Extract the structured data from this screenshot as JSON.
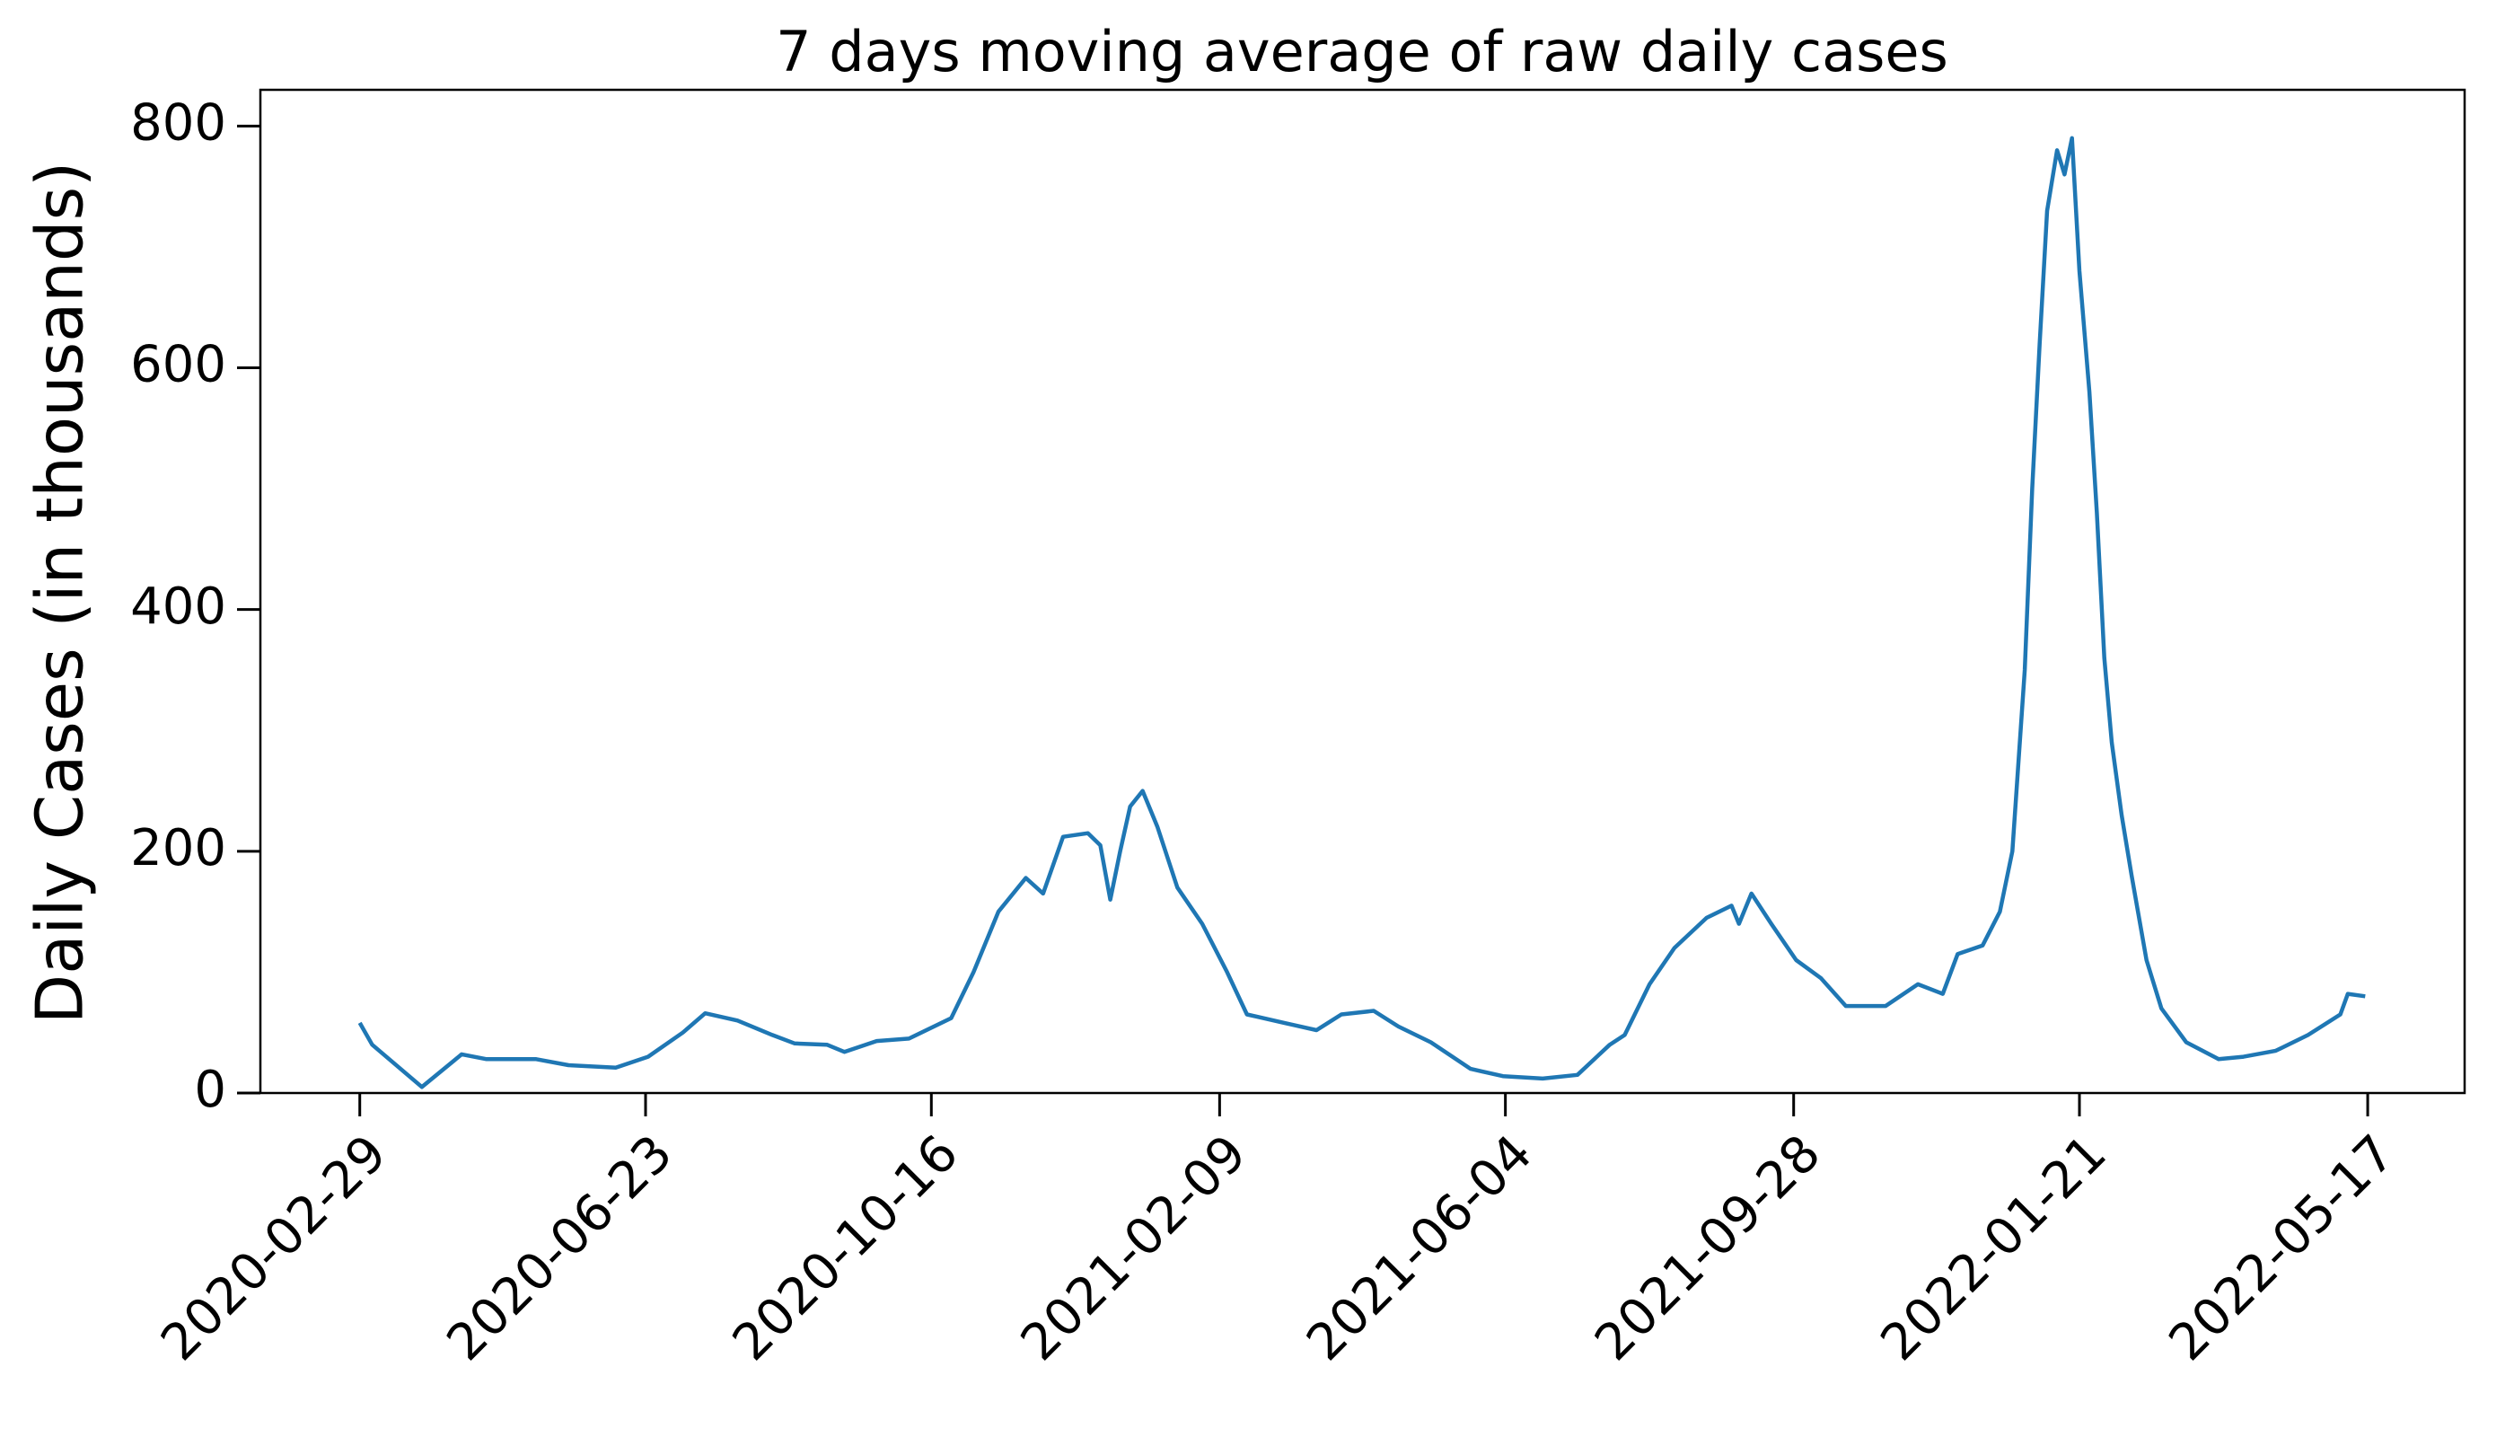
{
  "chart_data": {
    "type": "line",
    "title": "7 days moving average of raw daily cases",
    "y_label": "Daily Cases (in thousands)",
    "x": [
      "2020-02-29",
      "2020-03-05",
      "2020-03-25",
      "2020-04-10",
      "2020-04-20",
      "2020-05-10",
      "2020-05-23",
      "2020-06-11",
      "2020-06-24",
      "2020-07-08",
      "2020-07-17",
      "2020-07-30",
      "2020-08-13",
      "2020-08-22",
      "2020-09-04",
      "2020-09-11",
      "2020-09-24",
      "2020-10-07",
      "2020-10-24",
      "2020-11-02",
      "2020-11-12",
      "2020-11-23",
      "2020-11-30",
      "2020-12-08",
      "2020-12-18",
      "2020-12-23",
      "2020-12-27",
      "2020-12-31",
      "2021-01-04",
      "2021-01-09",
      "2021-01-15",
      "2021-01-23",
      "2021-02-02",
      "2021-02-12",
      "2021-02-20",
      "2021-03-07",
      "2021-03-20",
      "2021-03-30",
      "2021-04-12",
      "2021-04-22",
      "2021-05-05",
      "2021-05-21",
      "2021-06-03",
      "2021-06-19",
      "2021-07-03",
      "2021-07-16",
      "2021-07-22",
      "2021-08-01",
      "2021-08-11",
      "2021-08-24",
      "2021-09-03",
      "2021-09-06",
      "2021-09-11",
      "2021-09-19",
      "2021-09-29",
      "2021-10-09",
      "2021-10-19",
      "2021-11-04",
      "2021-11-17",
      "2021-11-27",
      "2021-12-03",
      "2021-12-13",
      "2021-12-20",
      "2021-12-25",
      "2021-12-30",
      "2022-01-02",
      "2022-01-05",
      "2022-01-08",
      "2022-01-12",
      "2022-01-15",
      "2022-01-18",
      "2022-01-21",
      "2022-01-25",
      "2022-01-28",
      "2022-01-31",
      "2022-02-03",
      "2022-02-07",
      "2022-02-11",
      "2022-02-17",
      "2022-02-23",
      "2022-03-05",
      "2022-03-18",
      "2022-03-28",
      "2022-04-10",
      "2022-04-23",
      "2022-05-06",
      "2022-05-09",
      "2022-05-16"
    ],
    "series": [
      {
        "name": "7 days moving average",
        "color": "#1f77b4",
        "values": [
          58,
          40,
          5,
          32,
          28,
          28,
          23,
          21,
          30,
          50,
          66,
          60,
          48,
          41,
          40,
          34,
          43,
          45,
          62,
          100,
          150,
          178,
          165,
          212,
          215,
          205,
          160,
          200,
          237,
          250,
          220,
          170,
          140,
          100,
          65,
          58,
          52,
          65,
          68,
          55,
          42,
          20,
          14,
          12,
          15,
          40,
          48,
          90,
          120,
          145,
          155,
          140,
          165,
          140,
          110,
          95,
          72,
          72,
          90,
          82,
          115,
          122,
          150,
          200,
          350,
          500,
          620,
          730,
          780,
          760,
          790,
          680,
          580,
          480,
          360,
          290,
          230,
          180,
          110,
          70,
          42,
          28,
          30,
          35,
          48,
          65,
          82,
          80
        ]
      }
    ],
    "xlim": [
      "2020-01-20",
      "2022-06-25"
    ],
    "xticks": [
      "2020-02-29",
      "2020-06-23",
      "2020-10-16",
      "2021-02-09",
      "2021-06-04",
      "2021-09-28",
      "2022-01-21",
      "2022-05-17"
    ],
    "ylim": [
      0,
      830
    ],
    "yticks": [
      0,
      200,
      400,
      600,
      800
    ],
    "grid": false
  }
}
